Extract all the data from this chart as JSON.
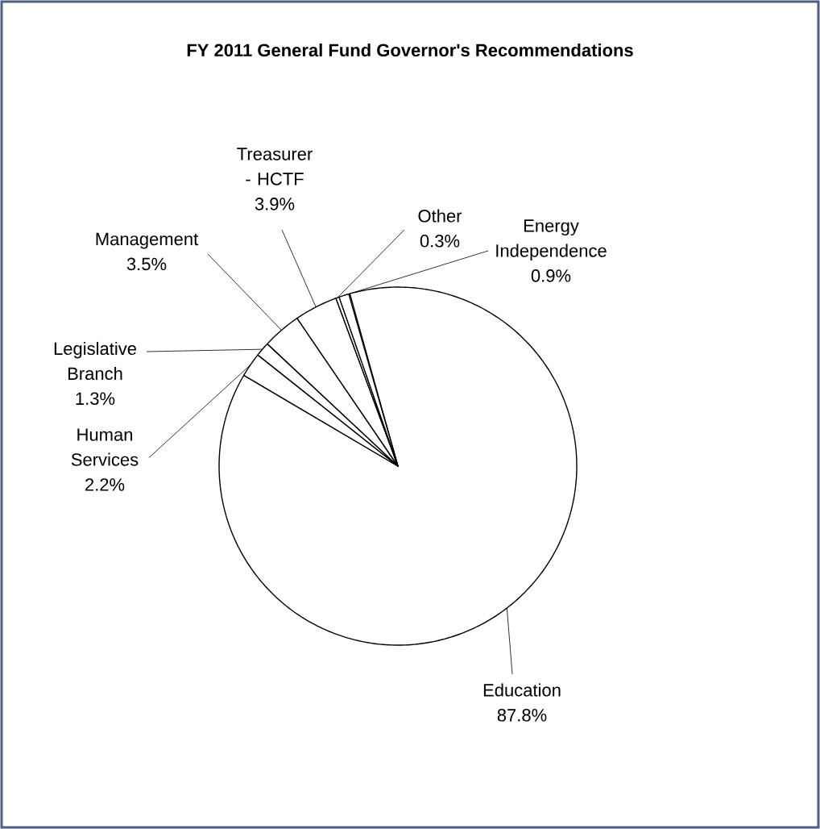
{
  "chart_data": {
    "type": "pie",
    "title": "FY 2011 General Fund Governor's Recommendations",
    "categories": [
      "Education",
      "Human Services",
      "Legislative Branch",
      "Management",
      "Treasurer - HCTF",
      "Other",
      "Energy Independence"
    ],
    "values": [
      87.8,
      2.2,
      1.3,
      3.5,
      3.9,
      0.3,
      0.9
    ],
    "value_labels": [
      "87.8%",
      "2.2%",
      "1.3%",
      "3.5%",
      "3.9%",
      "0.3%",
      "0.9%"
    ],
    "colors": [
      "#ffffff",
      "#ffffff",
      "#ffffff",
      "#ffffff",
      "#ffffff",
      "#ffffff",
      "#ffffff"
    ],
    "legend": false
  }
}
